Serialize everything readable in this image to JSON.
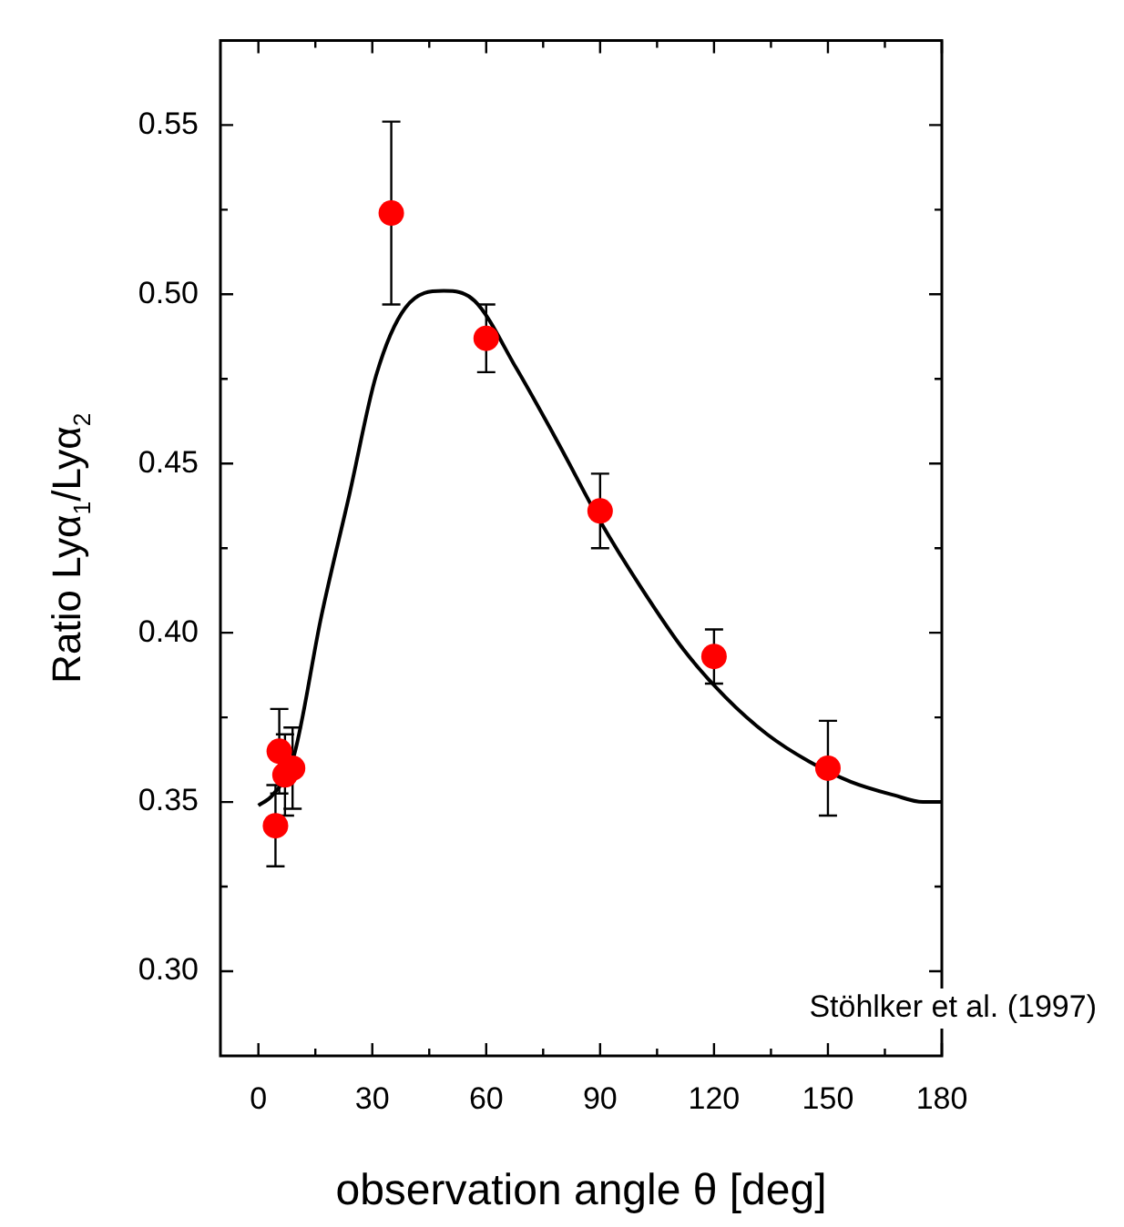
{
  "chart_data": {
    "type": "scatter",
    "xlabel": "observation angle θ [deg]",
    "ylabel": "Ratio Lyα$_{1}$/Lyα$_{2}$",
    "annotations": [
      "Stöhlker et al. (1997)"
    ],
    "xlim": [
      -10,
      180
    ],
    "xticks": [
      0,
      {
        "value": 15,
        "label": null
      },
      30,
      {
        "value": 45,
        "label": null
      },
      60,
      {
        "value": 75,
        "label": null
      },
      90,
      {
        "value": 105,
        "label": null
      },
      120,
      {
        "value": 135,
        "label": null
      },
      150,
      {
        "value": 165,
        "label": null
      },
      180
    ],
    "ylim": [
      0.275,
      0.575
    ],
    "yticks": [
      {
        "value": 0.3,
        "label": "0.30"
      },
      {
        "value": 0.325,
        "label": null
      },
      {
        "value": 0.35,
        "label": "0.35"
      },
      {
        "value": 0.375,
        "label": null
      },
      {
        "value": 0.4,
        "label": "0.40"
      },
      {
        "value": 0.425,
        "label": null
      },
      {
        "value": 0.45,
        "label": "0.45"
      },
      {
        "value": 0.475,
        "label": null
      },
      {
        "value": 0.5,
        "label": "0.50"
      },
      {
        "value": 0.525,
        "label": null
      },
      {
        "value": 0.55,
        "label": "0.55"
      }
    ],
    "grid": false,
    "legend": false,
    "series": [
      {
        "type": "line",
        "color": "#000000",
        "marker": "none",
        "line_style": "solid",
        "x": [
          0,
          3.7,
          9.2,
          16.6,
          24,
          31,
          38.7,
          48.8,
          57,
          68,
          79,
          90,
          101,
          112,
          123,
          134,
          145,
          156,
          167.5,
          175,
          180
        ],
        "values": [
          0.349,
          0.352,
          0.363,
          0.405,
          0.441,
          0.476,
          0.496,
          0.501,
          0.498,
          0.478,
          0.456,
          0.433,
          0.413,
          0.395,
          0.381,
          0.37,
          0.362,
          0.356,
          0.352,
          0.35,
          0.35
        ]
      },
      {
        "type": "scatter",
        "color": "#ff0000",
        "marker": "circle",
        "x": [
          4.5,
          5.5,
          7,
          9,
          35,
          60,
          90,
          120,
          150
        ],
        "values": [
          0.343,
          0.365,
          0.358,
          0.36,
          0.524,
          0.487,
          0.436,
          0.393,
          0.36
        ],
        "errors": [
          0.012,
          0.0125,
          0.012,
          0.012,
          0.027,
          0.01,
          0.011,
          0.008,
          0.014
        ]
      }
    ]
  }
}
